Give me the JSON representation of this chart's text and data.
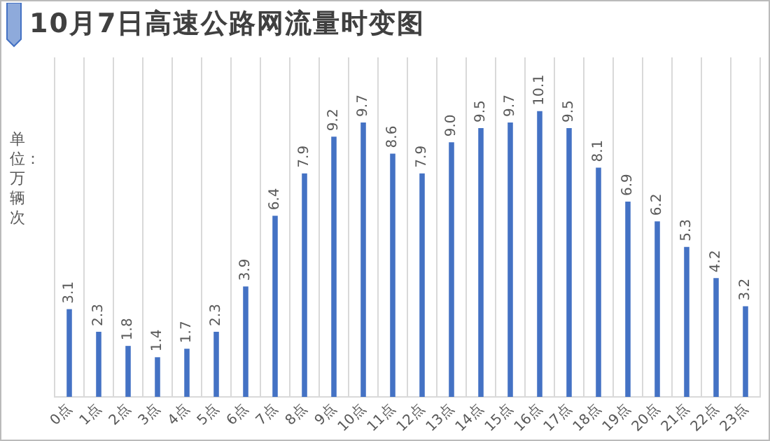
{
  "chart_data": {
    "type": "bar",
    "title": "10月7日高速公路网流量时变图",
    "ylabel": "单位：万辆次",
    "categories": [
      "0点",
      "1点",
      "2点",
      "3点",
      "4点",
      "5点",
      "6点",
      "7点",
      "8点",
      "9点",
      "10点",
      "11点",
      "12点",
      "13点",
      "14点",
      "15点",
      "16点",
      "17点",
      "18点",
      "19点",
      "20点",
      "21点",
      "22点",
      "23点"
    ],
    "values": [
      3.1,
      2.3,
      1.8,
      1.4,
      1.7,
      2.3,
      3.9,
      6.4,
      7.9,
      9.2,
      9.7,
      8.6,
      7.9,
      9.0,
      9.5,
      9.7,
      10.1,
      9.5,
      8.1,
      6.9,
      6.2,
      5.3,
      4.2,
      3.2
    ],
    "value_labels": [
      "3.1",
      "2.3",
      "1.8",
      "1.4",
      "1.7",
      "2.3",
      "3.9",
      "6.4",
      "7.9",
      "9.2",
      "9.7",
      "8.6",
      "7.9",
      "9.0",
      "9.5",
      "9.7",
      "10.1",
      "9.5",
      "8.1",
      "6.9",
      "6.2",
      "5.3",
      "4.2",
      "3.2"
    ],
    "color": "#4472c4",
    "grid": "x",
    "legend": false
  }
}
